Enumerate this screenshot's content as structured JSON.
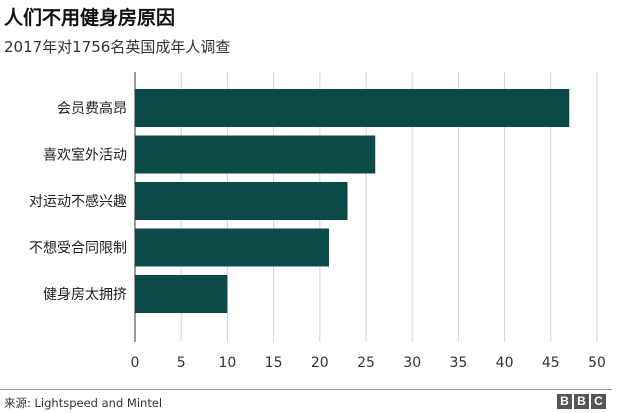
{
  "header": {
    "title": "人们不用健身房原因",
    "subtitle": "2017年对1756名英国成年人调查"
  },
  "footer": {
    "source": "来源: Lightspeed and Mintel",
    "logo": [
      "B",
      "B",
      "C"
    ]
  },
  "colors": {
    "bar": "#0c4a48",
    "grid": "#d6d6d6",
    "axis": "#333333"
  },
  "chart_data": {
    "type": "bar",
    "orientation": "horizontal",
    "title": "人们不用健身房原因",
    "subtitle": "2017年对1756名英国成年人调查",
    "categories": [
      "会员费高昂",
      "喜欢室外活动",
      "对运动不感兴趣",
      "不想受合同限制",
      "健身房太拥挤"
    ],
    "values": [
      47,
      26,
      23,
      21,
      10
    ],
    "xlim": [
      0,
      50
    ],
    "xticks": [
      0,
      5,
      10,
      15,
      20,
      25,
      30,
      35,
      40,
      45,
      50
    ],
    "xlabel": "",
    "ylabel": "",
    "grid": "vertical",
    "legend": "none"
  }
}
